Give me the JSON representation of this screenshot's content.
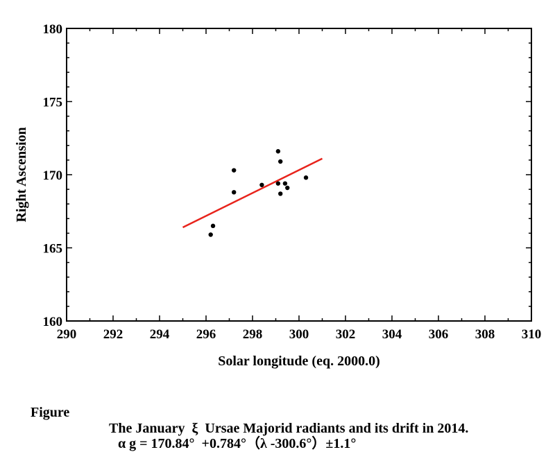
{
  "chart_data": {
    "type": "scatter",
    "xlabel": "Solar longitude (eq. 2000.0)",
    "ylabel": "Right Ascension",
    "xlim": [
      290,
      310
    ],
    "ylim": [
      160,
      180
    ],
    "xticks": [
      290,
      292,
      294,
      296,
      298,
      300,
      302,
      304,
      306,
      308,
      310
    ],
    "yticks": [
      160,
      165,
      170,
      175,
      180
    ],
    "grid": false,
    "points": [
      {
        "x": 296.2,
        "y": 165.9
      },
      {
        "x": 296.3,
        "y": 166.5
      },
      {
        "x": 297.2,
        "y": 170.3
      },
      {
        "x": 297.2,
        "y": 168.8
      },
      {
        "x": 298.4,
        "y": 169.3
      },
      {
        "x": 299.1,
        "y": 171.6
      },
      {
        "x": 299.2,
        "y": 170.9
      },
      {
        "x": 299.1,
        "y": 169.4
      },
      {
        "x": 299.2,
        "y": 168.7
      },
      {
        "x": 299.4,
        "y": 169.4
      },
      {
        "x": 299.5,
        "y": 169.1
      },
      {
        "x": 300.3,
        "y": 169.8
      }
    ],
    "fit_line": {
      "x": [
        295.0,
        301.0
      ],
      "y": [
        166.4,
        171.1
      ],
      "color": "#e8231b"
    },
    "point_color": "#000000"
  },
  "caption": {
    "figure_word": "Figure",
    "title": "The January  ξ  Ursae Majorid radiants and its drift in 2014.",
    "formula": "α g = 170.84°  +0.784°（λ -300.6°）±1.1°"
  }
}
